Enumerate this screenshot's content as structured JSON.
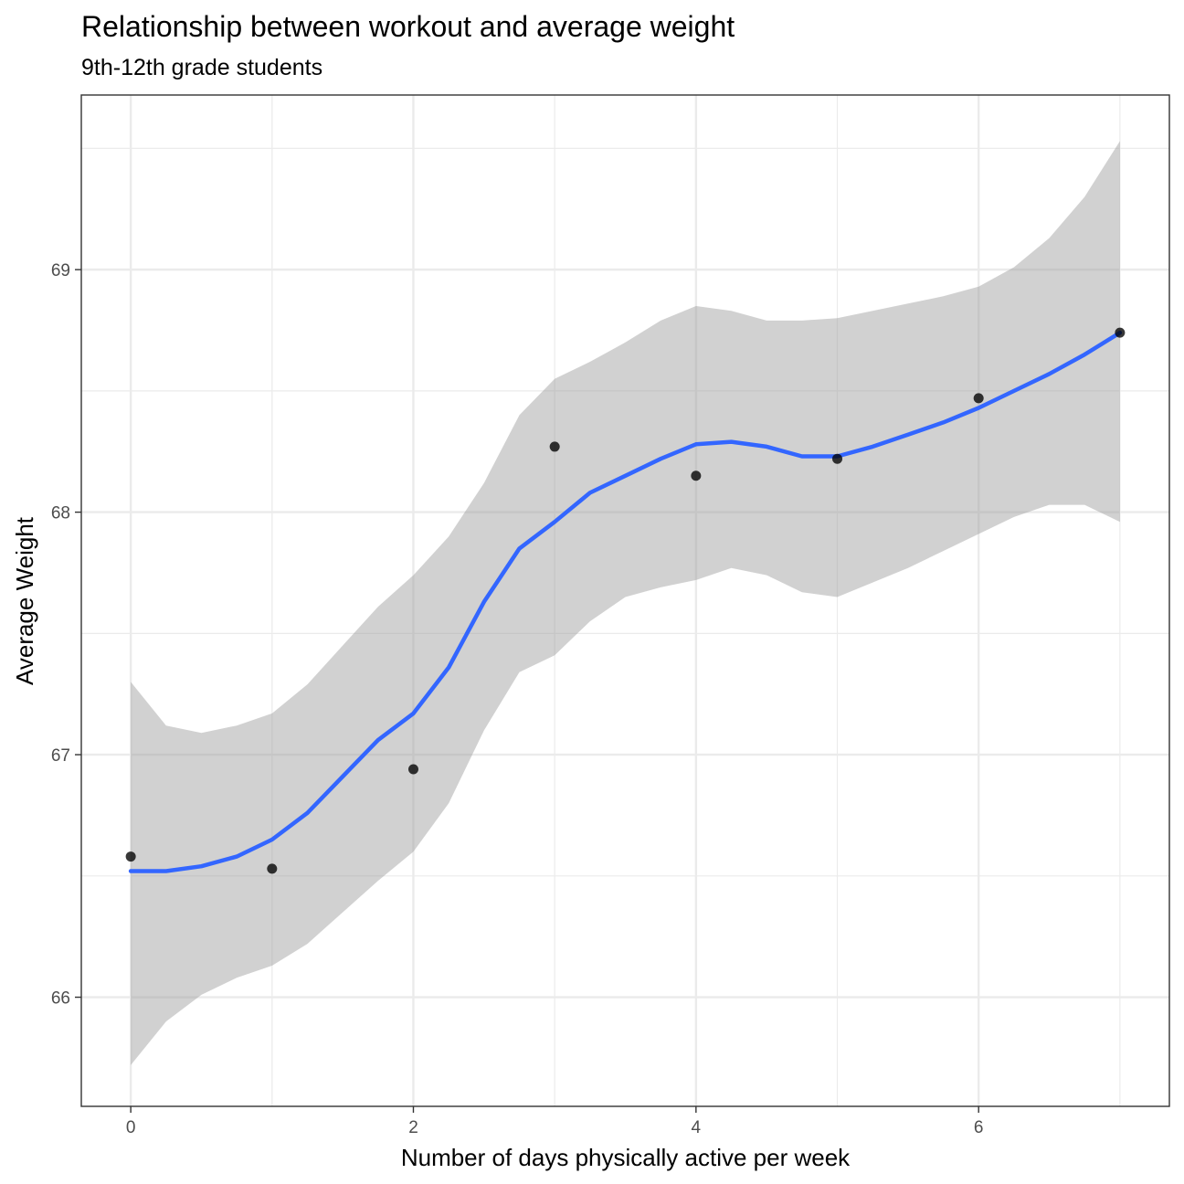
{
  "chart_data": {
    "type": "scatter",
    "title": "Relationship between workout and average weight",
    "subtitle": "9th-12th grade students",
    "xlabel": "Number of days physically active per week",
    "ylabel": "Average Weight",
    "xlim": [
      -0.35,
      7.35
    ],
    "ylim": [
      65.55,
      69.72
    ],
    "x_ticks": [
      0,
      2,
      4,
      6
    ],
    "x_tick_labels": [
      "0",
      "2",
      "4",
      "6"
    ],
    "x_minor": [
      1,
      3,
      5,
      7
    ],
    "y_ticks": [
      66,
      67,
      68,
      69
    ],
    "y_tick_labels": [
      "66",
      "67",
      "68",
      "69"
    ],
    "y_minor": [
      66.5,
      67.5,
      68.5,
      69.5
    ],
    "grid": true,
    "points": {
      "x": [
        0,
        1,
        2,
        3,
        4,
        5,
        6,
        7
      ],
      "y": [
        66.58,
        66.53,
        66.94,
        68.27,
        68.15,
        68.22,
        68.47,
        68.74
      ]
    },
    "smooth": {
      "x": [
        0,
        0.25,
        0.5,
        0.75,
        1,
        1.25,
        1.5,
        1.75,
        2,
        2.25,
        2.5,
        2.75,
        3,
        3.25,
        3.5,
        3.75,
        4,
        4.25,
        4.5,
        4.75,
        5,
        5.25,
        5.5,
        5.75,
        6,
        6.25,
        6.5,
        6.75,
        7
      ],
      "y": [
        66.52,
        66.52,
        66.54,
        66.58,
        66.65,
        66.76,
        66.91,
        67.06,
        67.17,
        67.36,
        67.63,
        67.85,
        67.96,
        68.08,
        68.15,
        68.22,
        68.28,
        68.29,
        68.27,
        68.23,
        68.23,
        68.27,
        68.32,
        68.37,
        68.43,
        68.5,
        68.57,
        68.65,
        68.74
      ],
      "lower": [
        65.72,
        65.9,
        66.01,
        66.08,
        66.13,
        66.22,
        66.35,
        66.48,
        66.6,
        66.8,
        67.1,
        67.34,
        67.41,
        67.55,
        67.65,
        67.69,
        67.72,
        67.77,
        67.74,
        67.67,
        67.65,
        67.71,
        67.77,
        67.84,
        67.91,
        67.98,
        68.03,
        68.03,
        67.96
      ],
      "upper": [
        67.3,
        67.12,
        67.09,
        67.12,
        67.17,
        67.29,
        67.45,
        67.61,
        67.74,
        67.9,
        68.12,
        68.4,
        68.55,
        68.62,
        68.7,
        68.79,
        68.85,
        68.83,
        68.79,
        68.79,
        68.8,
        68.83,
        68.86,
        68.89,
        68.93,
        69.01,
        69.13,
        69.3,
        69.53
      ]
    },
    "colors": {
      "line": "#3366FF",
      "ribbon": "#999999",
      "points": "#000000",
      "grid": "#ebebeb",
      "panel_border": "#333333",
      "tick_text": "#4d4d4d"
    }
  }
}
